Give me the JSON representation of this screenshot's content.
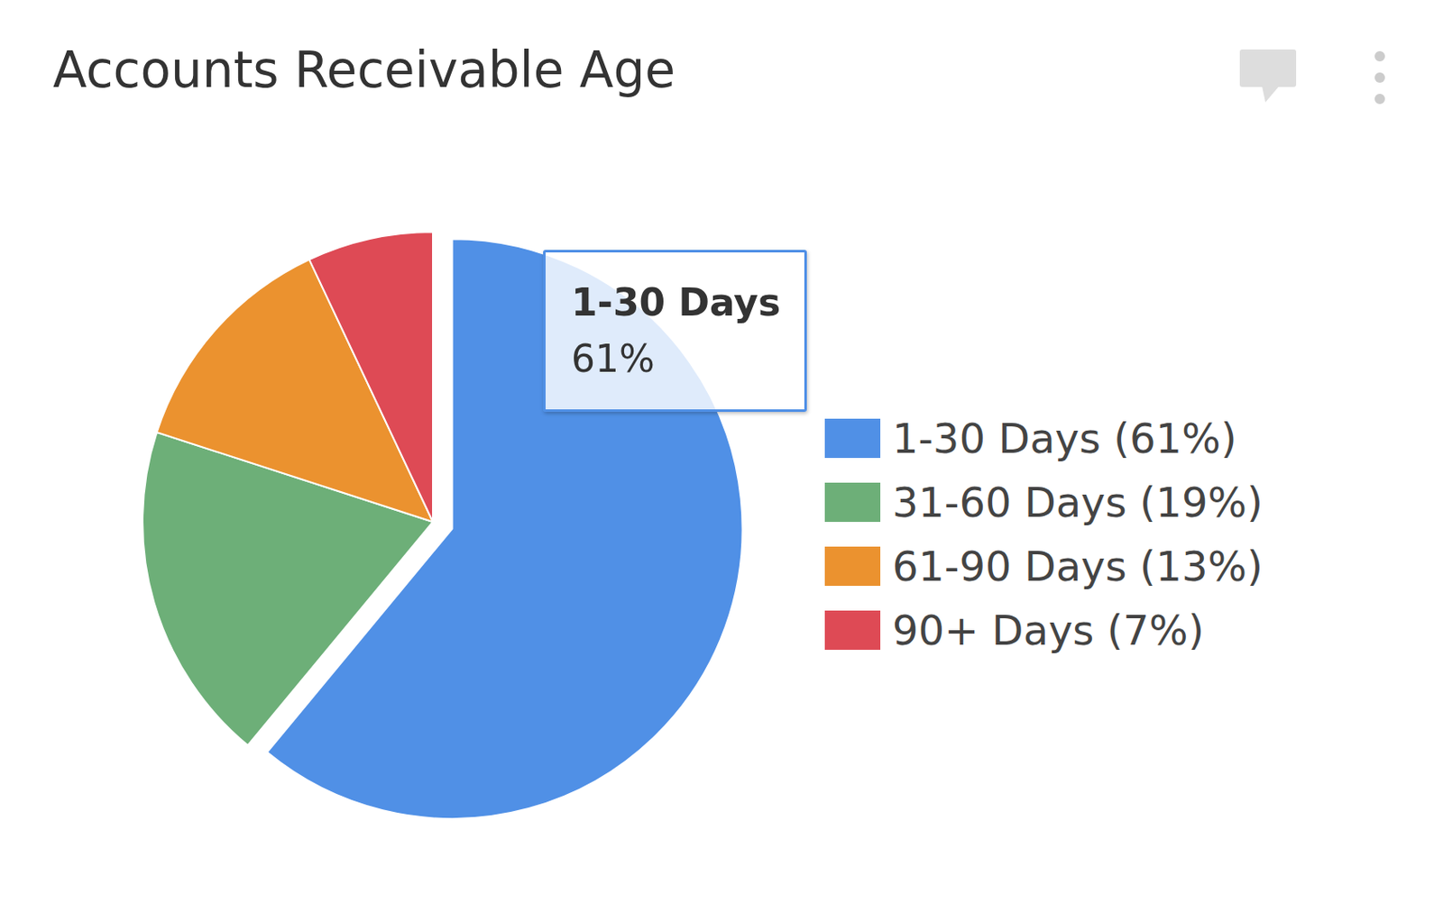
{
  "chart_data": {
    "type": "pie",
    "title": "Accounts Receivable Age",
    "categories": [
      "1-30 Days",
      "31-60 Days",
      "61-90 Days",
      "90+ Days"
    ],
    "values": [
      61,
      19,
      13,
      7
    ],
    "value_labels": [
      "61%",
      "19%",
      "13%",
      "7%"
    ],
    "legend_labels": [
      "1-30 Days (61%)",
      "31-60 Days (19%)",
      "61-90 Days (13%)",
      "90+ Days (7%)"
    ],
    "colors": [
      "#5090e6",
      "#6daf78",
      "#eb922f",
      "#de4a55"
    ],
    "legend": "right",
    "data_labels": false
  }
}
